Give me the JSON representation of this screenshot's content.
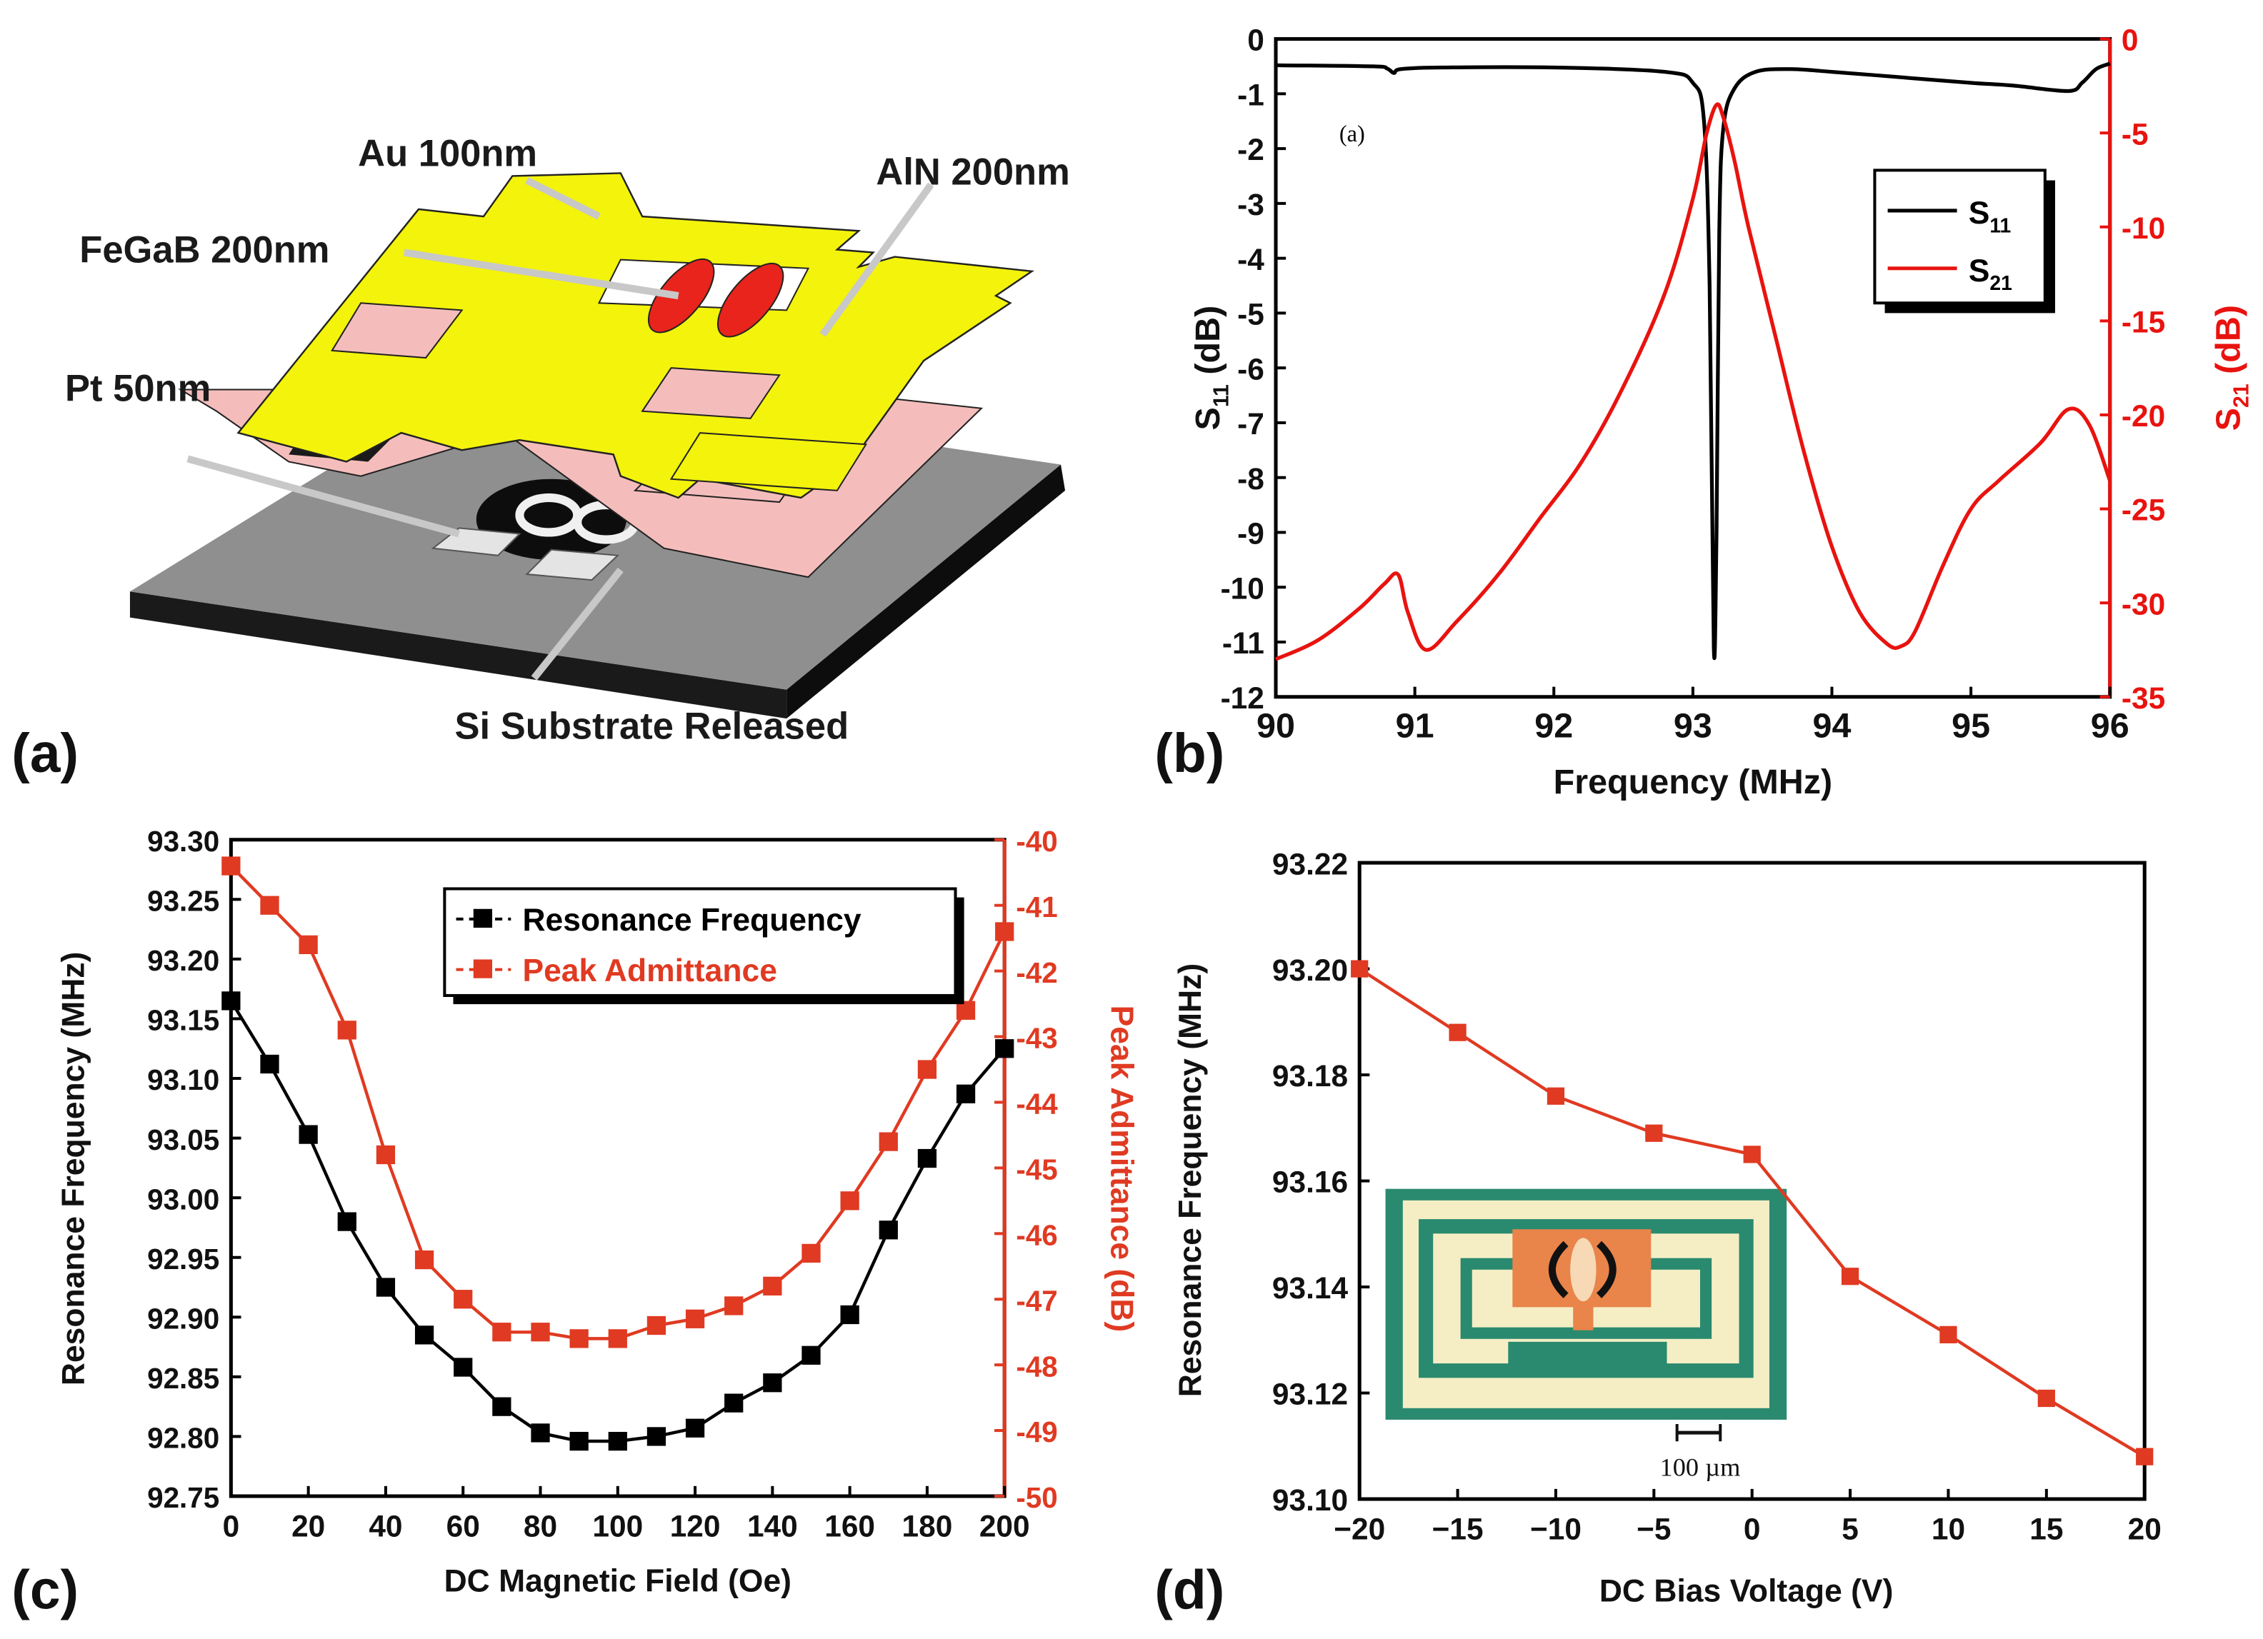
{
  "figure": {
    "panel_labels": [
      "(a)",
      "(b)",
      "(c)",
      "(d)"
    ]
  },
  "diagram_a": {
    "labels": {
      "au": "Au 100nm",
      "aln": "AlN 200nm",
      "fegab": "FeGaB 200nm",
      "pt": "Pt 50nm",
      "si": "Si Substrate Released"
    },
    "colors": {
      "au": "#f2f20a",
      "aln": "#f5c2c0",
      "fegab": "#e8241c",
      "substrate": "#8c8c8c"
    }
  },
  "chart_data": [
    {
      "id": "b",
      "type": "line",
      "xlabel": "Frequency (MHz)",
      "ylabel_left": "S11 (dB)",
      "ylabel_right": "S21 (dB)",
      "xlim": [
        90,
        96
      ],
      "ylim_left": [
        -12,
        0
      ],
      "ylim_right": [
        -35,
        0
      ],
      "x_ticks": [
        90,
        91,
        92,
        93,
        94,
        95,
        96
      ],
      "y_ticks_left": [
        0,
        -1,
        -2,
        -3,
        -4,
        -5,
        -6,
        -7,
        -8,
        -9,
        -10,
        -11,
        -12
      ],
      "y_ticks_right": [
        0,
        -5,
        -10,
        -15,
        -20,
        -25,
        -30,
        -35
      ],
      "inner_label": "(a)",
      "legend": [
        "S11",
        "S21"
      ],
      "series": [
        {
          "name": "S11",
          "axis": "left",
          "color": "#000000",
          "x": [
            90,
            90.7,
            90.8,
            90.85,
            90.9,
            91.2,
            92,
            92.8,
            93.0,
            93.08,
            93.12,
            93.15,
            93.17,
            93.19,
            93.22,
            93.3,
            93.45,
            93.7,
            94,
            94.5,
            95,
            95.3,
            95.7,
            95.8,
            95.9,
            96
          ],
          "values": [
            -0.48,
            -0.5,
            -0.54,
            -0.62,
            -0.55,
            -0.52,
            -0.52,
            -0.6,
            -0.8,
            -1.5,
            -4.5,
            -11.1,
            -9.0,
            -3.5,
            -1.6,
            -0.9,
            -0.6,
            -0.55,
            -0.6,
            -0.7,
            -0.8,
            -0.85,
            -0.95,
            -0.8,
            -0.55,
            -0.45
          ]
        },
        {
          "name": "S21",
          "axis": "right",
          "color": "#e8130f",
          "x": [
            90,
            90.3,
            90.6,
            90.78,
            90.88,
            90.95,
            91.08,
            91.3,
            91.6,
            91.9,
            92.2,
            92.5,
            92.8,
            93.0,
            93.1,
            93.17,
            93.22,
            93.3,
            93.4,
            93.6,
            93.8,
            94.0,
            94.2,
            94.4,
            94.5,
            94.6,
            94.8,
            95.0,
            95.2,
            95.5,
            95.7,
            95.85,
            96
          ],
          "values": [
            -33,
            -32,
            -30.3,
            -29.0,
            -28.5,
            -30.5,
            -32.5,
            -31,
            -28.5,
            -25.5,
            -22.5,
            -18.5,
            -13.5,
            -8.5,
            -5.0,
            -3.5,
            -4.2,
            -6.5,
            -10,
            -16,
            -22,
            -27,
            -30.5,
            -32.2,
            -32.3,
            -31.5,
            -28,
            -25,
            -23.5,
            -21.5,
            -19.7,
            -20.5,
            -23.5
          ]
        }
      ]
    },
    {
      "id": "c",
      "type": "line",
      "xlabel": "DC Magnetic Field (Oe)",
      "ylabel_left": "Resonance Frequency (MHz)",
      "ylabel_right": "Peak Admittance (dB)",
      "xlim": [
        0,
        200
      ],
      "ylim_left": [
        92.75,
        93.3
      ],
      "ylim_right": [
        -50,
        -40
      ],
      "x_ticks": [
        0,
        20,
        40,
        60,
        80,
        100,
        120,
        140,
        160,
        180,
        200
      ],
      "y_ticks_left": [
        "93.30",
        "93.25",
        "93.20",
        "93.15",
        "93.10",
        "93.05",
        "93.00",
        "92.95",
        "92.90",
        "92.85",
        "92.80",
        "92.75"
      ],
      "y_ticks_right": [
        -40,
        -41,
        -42,
        -43,
        -44,
        -45,
        -46,
        -47,
        -48,
        -49,
        -50
      ],
      "legend": [
        "Resonance Frequency",
        "Peak Admittance"
      ],
      "series": [
        {
          "name": "Resonance Frequency",
          "axis": "left",
          "color": "#000000",
          "x": [
            0,
            10,
            20,
            30,
            40,
            50,
            60,
            70,
            80,
            90,
            100,
            110,
            120,
            130,
            140,
            150,
            160,
            170,
            180,
            190,
            200
          ],
          "values": [
            93.165,
            93.112,
            93.053,
            92.98,
            92.925,
            92.885,
            92.858,
            92.825,
            92.803,
            92.796,
            92.796,
            92.8,
            92.807,
            92.828,
            92.845,
            92.868,
            92.902,
            92.973,
            93.033,
            93.087,
            93.125
          ]
        },
        {
          "name": "Peak Admittance",
          "axis": "right",
          "color": "#e03a22",
          "x": [
            0,
            10,
            20,
            30,
            40,
            50,
            60,
            70,
            80,
            90,
            100,
            110,
            120,
            130,
            140,
            150,
            160,
            170,
            180,
            190,
            200
          ],
          "values": [
            -40.4,
            -41.0,
            -41.6,
            -42.9,
            -44.8,
            -46.4,
            -47.0,
            -47.5,
            -47.5,
            -47.6,
            -47.6,
            -47.4,
            -47.3,
            -47.1,
            -46.8,
            -46.3,
            -45.5,
            -44.6,
            -43.5,
            -42.6,
            -41.4
          ]
        }
      ]
    },
    {
      "id": "d",
      "type": "line",
      "xlabel": "DC Bias Voltage (V)",
      "ylabel": "Resonance Frequency (MHz)",
      "xlim": [
        -20,
        20
      ],
      "ylim": [
        93.1,
        93.22
      ],
      "x_ticks": [
        "−20",
        "−15",
        "−10",
        "−5",
        "0",
        "5",
        "10",
        "15",
        "20"
      ],
      "y_ticks": [
        "93.22",
        "93.20",
        "93.18",
        "93.16",
        "93.14",
        "93.12",
        "93.10"
      ],
      "series": [
        {
          "name": "Resonance Frequency",
          "color": "#e03a22",
          "x": [
            -20,
            -15,
            -10,
            -5,
            0,
            5,
            10,
            15,
            20
          ],
          "values": [
            93.2,
            93.188,
            93.176,
            93.169,
            93.165,
            93.142,
            93.131,
            93.119,
            93.108
          ]
        }
      ],
      "inset": {
        "scale_label": "100 µm"
      }
    }
  ]
}
